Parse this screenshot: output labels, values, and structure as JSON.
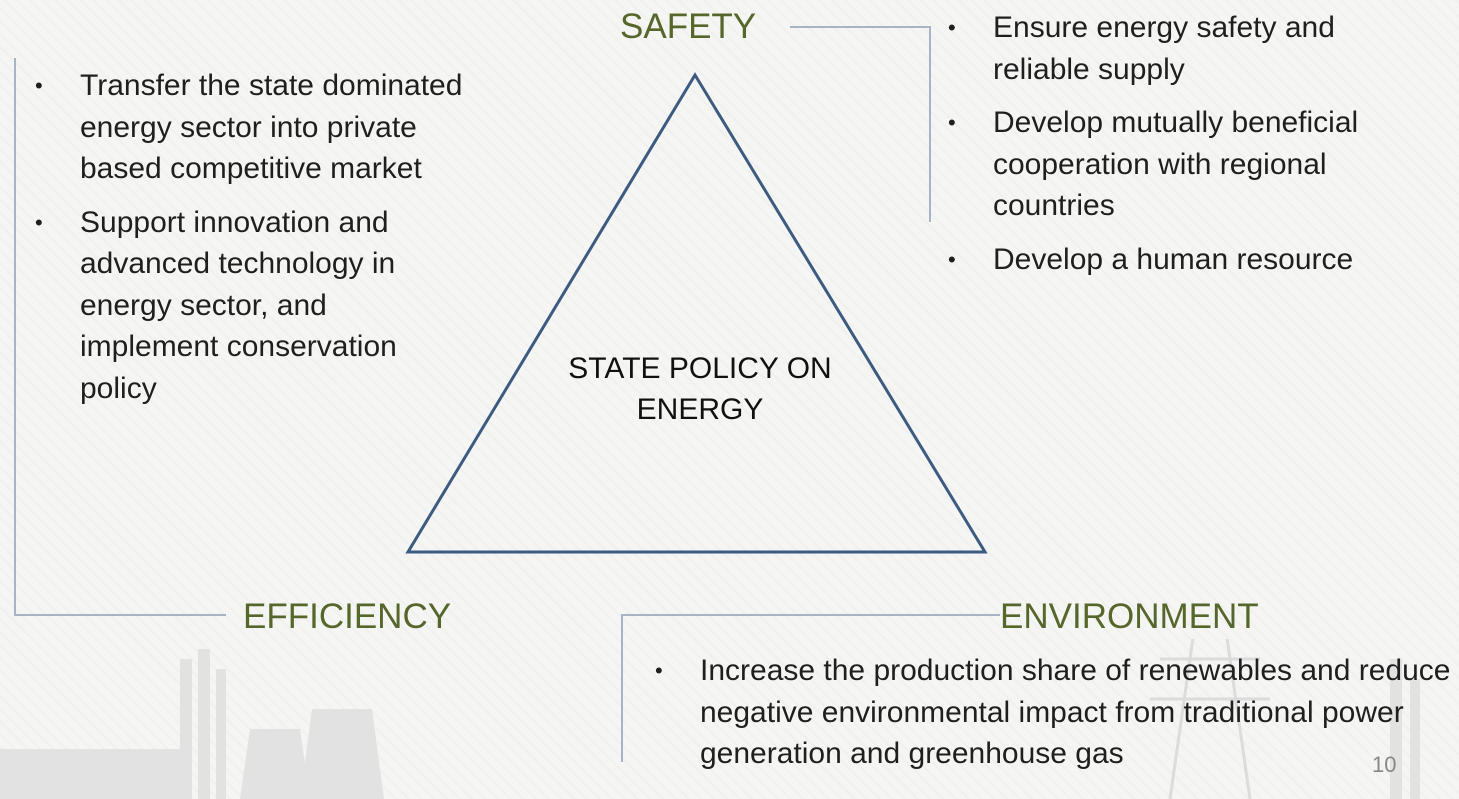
{
  "center": "STATE POLICY ON ENERGY",
  "pillars": [
    {
      "label": "SAFETY",
      "bullets": [
        "Ensure energy safety and reliable supply",
        "Develop mutually beneficial cooperation with regional countries",
        "Develop a human resource"
      ]
    },
    {
      "label": "EFFICIENCY",
      "bullets": [
        "Transfer the state dominated energy sector into private based competitive market",
        "Support innovation and advanced technology in energy sector, and implement conservation policy"
      ]
    },
    {
      "label": "ENVIRONMENT",
      "bullets": [
        "Increase the production share of renewables and reduce negative environmental impact from traditional power generation and greenhouse gas"
      ]
    }
  ],
  "page_number": "10"
}
